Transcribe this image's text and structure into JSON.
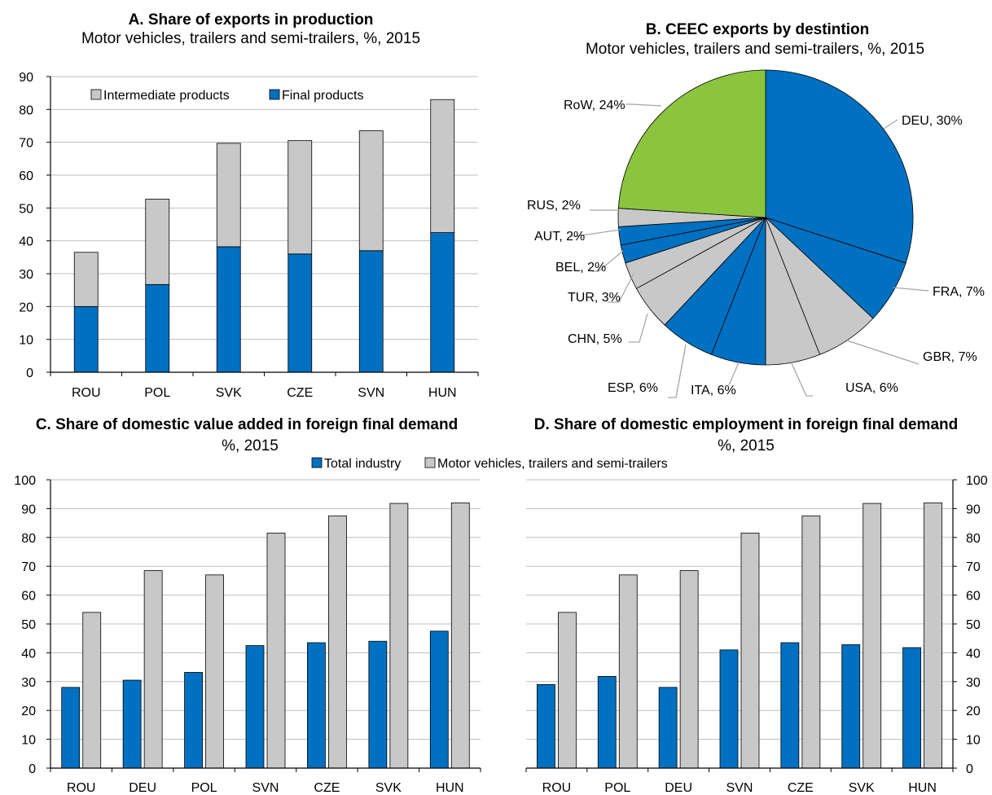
{
  "colors": {
    "final_blue": "#0070C0",
    "grey": "#C8C8C8",
    "green": "#8BC53F",
    "axis": "#000000",
    "grid": "#BFBFBF",
    "leader": "#A6A6A6"
  },
  "chart_data": [
    {
      "id": "A",
      "type": "bar",
      "stacked": true,
      "title": "A. Share of exports in production",
      "subtitle": "Motor vehicles, trailers and semi-trailers, %, 2015",
      "categories": [
        "ROU",
        "POL",
        "SVK",
        "CZE",
        "SVN",
        "HUN"
      ],
      "series": [
        {
          "name": "Final products",
          "color": "#0070C0",
          "values": [
            20,
            26.7,
            38.2,
            36,
            37,
            42.5
          ]
        },
        {
          "name": "Intermediate products",
          "color": "#C8C8C8",
          "values": [
            16.5,
            26,
            31.5,
            34.5,
            36.5,
            40.5
          ]
        }
      ],
      "legend_order": [
        "Intermediate products",
        "Final products"
      ],
      "yticks": [
        "0",
        "10",
        "20",
        "30",
        "40",
        "50",
        "60",
        "70",
        "80",
        "90"
      ],
      "ylim": [
        0,
        90
      ],
      "grid": true
    },
    {
      "id": "B",
      "type": "pie",
      "title": "B. CEEC exports by destintion",
      "subtitle": "Motor vehicles, trailers and semi-trailers, %, 2015",
      "slices": [
        {
          "name": "DEU",
          "value": 30,
          "label": "DEU, 30%",
          "color": "#0070C0"
        },
        {
          "name": "FRA",
          "value": 7,
          "label": "FRA, 7%",
          "color": "#0070C0"
        },
        {
          "name": "GBR",
          "value": 7,
          "label": "GBR, 7%",
          "color": "#C8C8C8"
        },
        {
          "name": "USA",
          "value": 6,
          "label": "USA, 6%",
          "color": "#C8C8C8"
        },
        {
          "name": "ITA",
          "value": 6,
          "label": "ITA, 6%",
          "color": "#0070C0"
        },
        {
          "name": "ESP",
          "value": 6,
          "label": "ESP, 6%",
          "color": "#0070C0"
        },
        {
          "name": "CHN",
          "value": 5,
          "label": "CHN, 5%",
          "color": "#C8C8C8"
        },
        {
          "name": "TUR",
          "value": 3,
          "label": "TUR, 3%",
          "color": "#C8C8C8"
        },
        {
          "name": "BEL",
          "value": 2,
          "label": "BEL, 2%",
          "color": "#0070C0"
        },
        {
          "name": "AUT",
          "value": 2,
          "label": "AUT, 2%",
          "color": "#0070C0"
        },
        {
          "name": "RUS",
          "value": 2,
          "label": "RUS, 2%",
          "color": "#C8C8C8"
        },
        {
          "name": "RoW",
          "value": 24,
          "label": "RoW, 24%",
          "color": "#8BC53F"
        }
      ]
    },
    {
      "id": "C",
      "type": "bar",
      "title": "C. Share of domestic value added in foreign final demand",
      "subtitle": "%, 2015",
      "categories": [
        "ROU",
        "DEU",
        "POL",
        "SVN",
        "CZE",
        "SVK",
        "HUN"
      ],
      "series": [
        {
          "name": "Total industry",
          "color": "#0070C0",
          "values": [
            28,
            30.5,
            33.2,
            42.5,
            43.5,
            44,
            47.5
          ]
        },
        {
          "name": "Motor vehicles, trailers and semi-trailers",
          "color": "#C8C8C8",
          "values": [
            54,
            68.5,
            67,
            81.5,
            87.5,
            91.8,
            92
          ]
        }
      ],
      "yticks": [
        "0",
        "10",
        "20",
        "30",
        "40",
        "50",
        "60",
        "70",
        "80",
        "90",
        "100"
      ],
      "ylim": [
        0,
        100
      ],
      "grid": true
    },
    {
      "id": "D",
      "type": "bar",
      "title": "D. Share of domestic employment in foreign final demand",
      "subtitle": "%, 2015",
      "categories": [
        "ROU",
        "POL",
        "DEU",
        "SVN",
        "CZE",
        "SVK",
        "HUN"
      ],
      "series": [
        {
          "name": "Total industry",
          "color": "#0070C0",
          "values": [
            29,
            31.8,
            28,
            41,
            43.5,
            42.8,
            41.8
          ]
        },
        {
          "name": "Motor vehicles, trailers and semi-trailers",
          "color": "#C8C8C8",
          "values": [
            54,
            67,
            68.5,
            81.5,
            87.5,
            91.8,
            92
          ]
        }
      ],
      "yticks": [
        "0",
        "10",
        "20",
        "30",
        "40",
        "50",
        "60",
        "70",
        "80",
        "90",
        "100"
      ],
      "ylim": [
        0,
        100
      ],
      "grid": true
    }
  ],
  "shared_legend_cd": [
    "Total industry",
    "Motor vehicles, trailers and semi-trailers"
  ]
}
